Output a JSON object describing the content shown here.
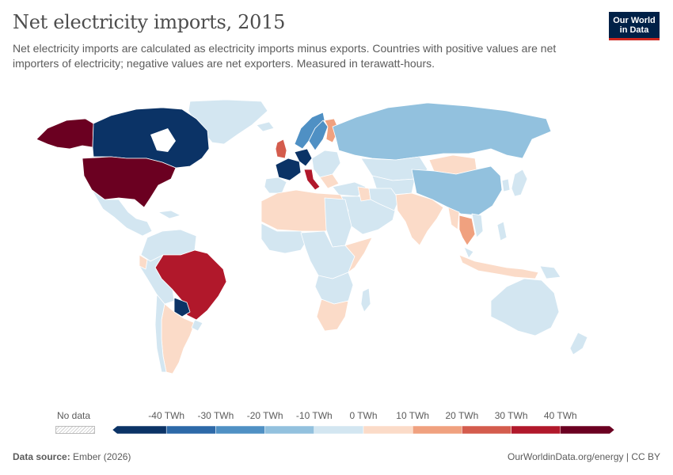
{
  "header": {
    "title": "Net electricity imports, 2015",
    "subtitle": "Net electricity imports are calculated as electricity imports minus exports. Countries with positive values are net importers of electricity; negative values are net exporters. Measured in terawatt-hours."
  },
  "logo": {
    "line1": "Our World",
    "line2": "in Data"
  },
  "legend": {
    "no_data_label": "No data",
    "ticks": [
      "-40 TWh",
      "-30 TWh",
      "-20 TWh",
      "-10 TWh",
      "0 TWh",
      "10 TWh",
      "20 TWh",
      "30 TWh",
      "40 TWh"
    ],
    "bins": [
      {
        "color": "#0b3366"
      },
      {
        "color": "#2d69a8"
      },
      {
        "color": "#4f90c4"
      },
      {
        "color": "#92c1de"
      },
      {
        "color": "#d3e6f1"
      },
      {
        "color": "#fbdbc8"
      },
      {
        "color": "#f0a17f"
      },
      {
        "color": "#d45c4d"
      },
      {
        "color": "#b1182b"
      },
      {
        "color": "#6b0021"
      }
    ]
  },
  "footer": {
    "source_label": "Data source:",
    "source": "Ember (2026)",
    "right": "OurWorldinData.org/energy | CC BY"
  }
}
